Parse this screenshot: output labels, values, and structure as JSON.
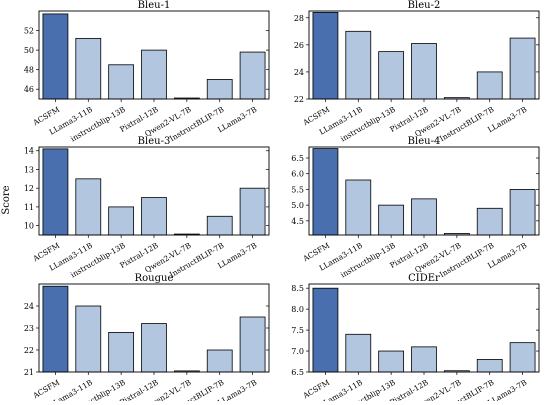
{
  "figure": {
    "shared_ylabel": "Score"
  },
  "chart_data": [
    {
      "type": "bar",
      "title": "Bleu-1",
      "xlabel": "",
      "ylabel": "Score",
      "categories": [
        "ACSFM",
        "LLama3-11B",
        "instructblip-13B",
        "Pixtral-12B",
        "Qwen2-VL-7B",
        "InstructBLIP-7B",
        "LLama3-7B"
      ],
      "values": [
        53.7,
        51.2,
        48.5,
        50.0,
        45.1,
        47.0,
        49.8
      ],
      "ylim": [
        45,
        54
      ],
      "yticks": [
        46,
        48,
        50,
        52
      ],
      "colors": [
        "#4a6fae",
        "#b3c6e0",
        "#b3c6e0",
        "#b3c6e0",
        "#b3c6e0",
        "#b3c6e0",
        "#b3c6e0"
      ]
    },
    {
      "type": "bar",
      "title": "Bleu-2",
      "xlabel": "",
      "ylabel": "",
      "categories": [
        "ACSFM",
        "LLama3-11B",
        "instructblip-13B",
        "Pixtral-12B",
        "Qwen2-VL-7B",
        "InstructBLIP-7B",
        "LLama3-7B"
      ],
      "values": [
        28.4,
        27.0,
        25.5,
        26.1,
        22.1,
        24.0,
        26.5
      ],
      "ylim": [
        22,
        28.5
      ],
      "yticks": [
        22,
        24,
        26,
        28
      ],
      "colors": [
        "#4a6fae",
        "#b3c6e0",
        "#b3c6e0",
        "#b3c6e0",
        "#b3c6e0",
        "#b3c6e0",
        "#b3c6e0"
      ]
    },
    {
      "type": "bar",
      "title": "Bleu-3",
      "xlabel": "",
      "ylabel": "",
      "categories": [
        "ACSFM",
        "LLama3-11B",
        "instructblip-13B",
        "Pixtral-12B",
        "Qwen2-VL-7B",
        "InstructBLIP-7B",
        "LLama3-7B"
      ],
      "values": [
        14.1,
        12.5,
        11.0,
        11.5,
        9.55,
        10.5,
        12.0
      ],
      "ylim": [
        9.5,
        14.2
      ],
      "yticks": [
        10,
        11,
        12,
        13,
        14
      ],
      "colors": [
        "#4a6fae",
        "#b3c6e0",
        "#b3c6e0",
        "#b3c6e0",
        "#b3c6e0",
        "#b3c6e0",
        "#b3c6e0"
      ]
    },
    {
      "type": "bar",
      "title": "Bleu-4",
      "xlabel": "",
      "ylabel": "",
      "categories": [
        "ACSFM",
        "LLama3-11B",
        "instructblip-13B",
        "Pixtral-12B",
        "Qwen2-VL-7B",
        "InstructBLIP-7B",
        "LLama3-7B"
      ],
      "values": [
        6.8,
        5.8,
        5.0,
        5.2,
        4.1,
        4.9,
        5.5
      ],
      "ylim": [
        4.05,
        6.85
      ],
      "yticks": [
        4.5,
        5.0,
        5.5,
        6.0,
        6.5
      ],
      "ytick_labels": [
        "4.5",
        "5.0",
        "5.5",
        "6.0",
        "6.5"
      ],
      "colors": [
        "#4a6fae",
        "#b3c6e0",
        "#b3c6e0",
        "#b3c6e0",
        "#b3c6e0",
        "#b3c6e0",
        "#b3c6e0"
      ]
    },
    {
      "type": "bar",
      "title": "Rougue",
      "xlabel": "",
      "ylabel": "",
      "categories": [
        "ACSFM",
        "LLama3-11B",
        "instructblip-13B",
        "Pixtral-12B",
        "Qwen2-VL-7B",
        "InstructBLIP-7B",
        "LLama3-7B"
      ],
      "values": [
        24.9,
        24.0,
        22.8,
        23.2,
        21.05,
        22.0,
        23.5
      ],
      "ylim": [
        21.0,
        25.0
      ],
      "yticks": [
        21,
        22,
        23,
        24
      ],
      "colors": [
        "#4a6fae",
        "#b3c6e0",
        "#b3c6e0",
        "#b3c6e0",
        "#b3c6e0",
        "#b3c6e0",
        "#b3c6e0"
      ]
    },
    {
      "type": "bar",
      "title": "CIDEr",
      "xlabel": "",
      "ylabel": "",
      "categories": [
        "ACSFM",
        "LLama3-11B",
        "instructblip-13B",
        "Pixtral-12B",
        "Qwen2-VL-7B",
        "InstructBLIP-7B",
        "LLama3-7B"
      ],
      "values": [
        8.5,
        7.4,
        7.0,
        7.1,
        6.53,
        6.8,
        7.2
      ],
      "ylim": [
        6.5,
        8.6
      ],
      "yticks": [
        6.5,
        7.0,
        7.5,
        8.0,
        8.5
      ],
      "ytick_labels": [
        "6.5",
        "7.0",
        "7.5",
        "8.0",
        "8.5"
      ],
      "colors": [
        "#4a6fae",
        "#b3c6e0",
        "#b3c6e0",
        "#b3c6e0",
        "#b3c6e0",
        "#b3c6e0",
        "#b3c6e0"
      ]
    }
  ]
}
